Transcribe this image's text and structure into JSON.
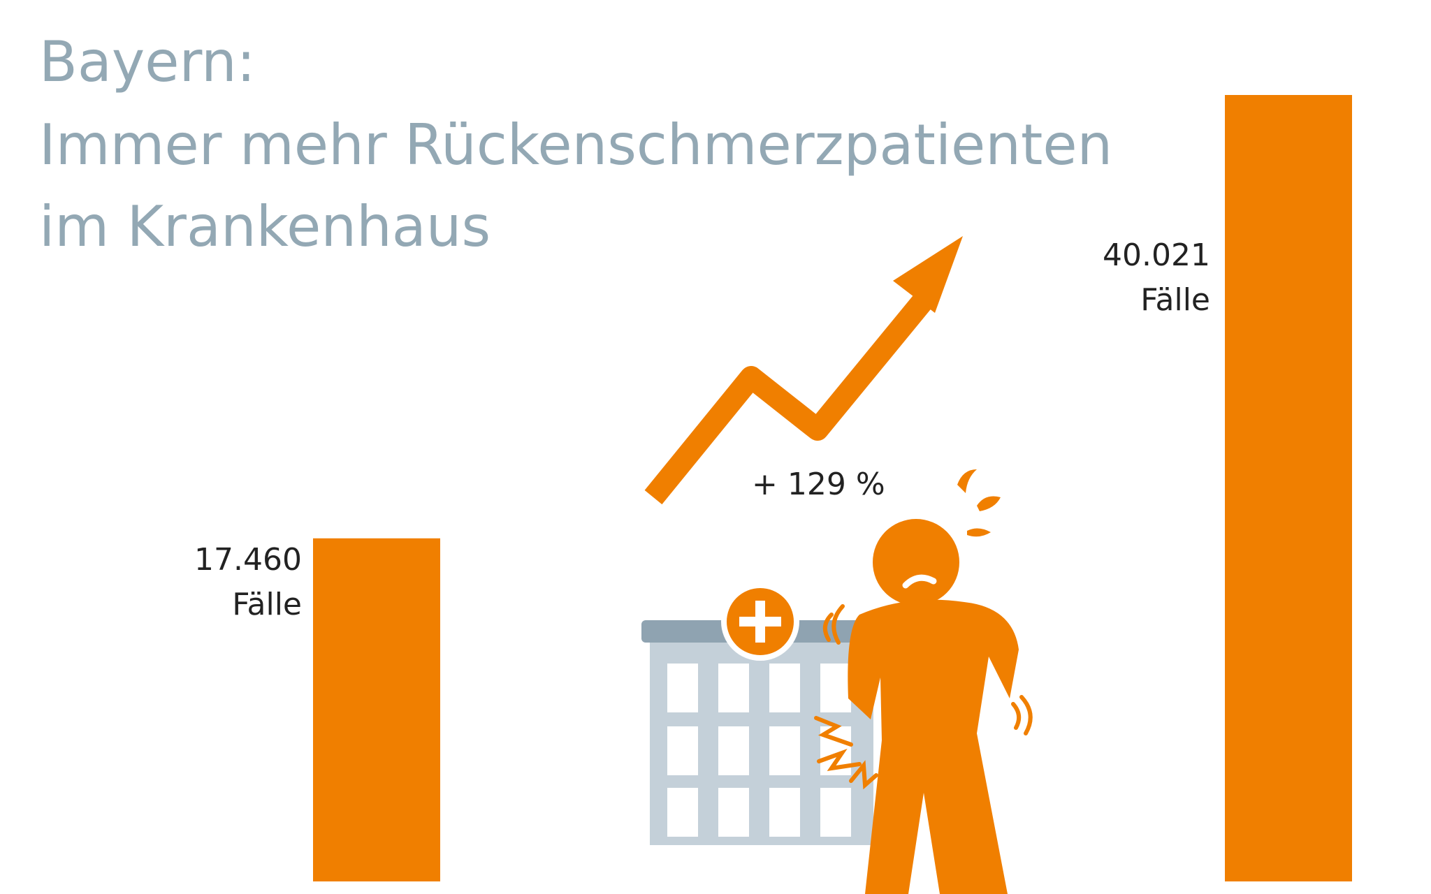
{
  "title": {
    "line1": "Bayern:",
    "line2": "Immer mehr Rückenschmerzpatienten",
    "line3": "im Krankenhaus"
  },
  "chart_data": {
    "type": "bar",
    "categories": [
      "",
      ""
    ],
    "values": [
      17460,
      40021
    ],
    "value_labels": [
      "17.460",
      "40.021"
    ],
    "unit_label": "Fälle",
    "change_label": "+  129 %",
    "xlabel": "",
    "ylabel": "",
    "ylim": [
      0,
      40021
    ],
    "grid": false,
    "legend": "none",
    "color": "#f07f00"
  },
  "illustration": {
    "icons": [
      "trend-arrow-icon",
      "hospital-icon",
      "back-pain-person-icon"
    ],
    "accent": "#f07f00",
    "building": "#c4d0d9",
    "roof": "#8fa3b1"
  }
}
